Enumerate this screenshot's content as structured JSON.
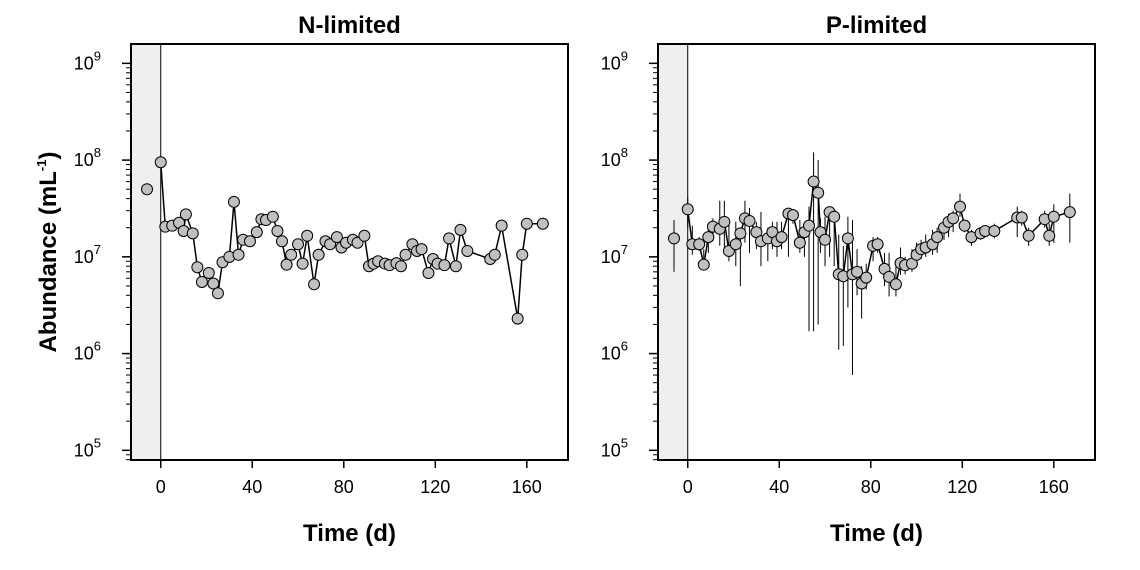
{
  "chart_data": [
    {
      "type": "scatter",
      "title": "N-limited",
      "xlabel": "Time (d)",
      "ylabel": "Abundance (mL",
      "ylabel_exponent": "-1",
      "ylabel_close": ")",
      "y_scale": "log10",
      "xlim": [
        -13,
        178
      ],
      "ylim_log10": [
        4.9,
        9.2
      ],
      "x_ticks": [
        0,
        40,
        80,
        120,
        160
      ],
      "y_tick_exponents": [
        5,
        6,
        7,
        8,
        9
      ],
      "y_tick_base": "10",
      "shaded_region": [
        -13,
        0
      ],
      "marker_fill": "#c0c0c0",
      "series": [
        {
          "x": [
            -6,
            0,
            2,
            5,
            8,
            10,
            11,
            14,
            16,
            18,
            21,
            23,
            25,
            27,
            30,
            32,
            34,
            36,
            39,
            42,
            44,
            46,
            49,
            51,
            53,
            55,
            57,
            60,
            62,
            64,
            67,
            69,
            72,
            74,
            77,
            79,
            81,
            84,
            86,
            89,
            91,
            93,
            95,
            98,
            100,
            103,
            105,
            107,
            110,
            112,
            114,
            117,
            119,
            121,
            124,
            126,
            129,
            131,
            134,
            144,
            146,
            149,
            156,
            158,
            160,
            167
          ],
          "y": [
            50000000.0,
            95000000.0,
            20500000.0,
            21000000.0,
            22500000.0,
            18500000.0,
            27500000.0,
            17500000.0,
            7800000.0,
            5500000.0,
            6800000.0,
            5300000.0,
            4200000.0,
            8800000.0,
            10000000.0,
            37000000.0,
            10500000.0,
            15000000.0,
            14500000.0,
            18000000.0,
            24500000.0,
            24000000.0,
            26000000.0,
            18500000.0,
            14500000.0,
            8300000.0,
            10500000.0,
            13500000.0,
            8500000.0,
            16500000.0,
            5200000.0,
            10500000.0,
            14500000.0,
            13500000.0,
            16000000.0,
            12500000.0,
            14000000.0,
            15000000.0,
            14000000.0,
            16500000.0,
            8000000.0,
            8500000.0,
            9000000.0,
            8500000.0,
            8200000.0,
            8600000.0,
            8000000.0,
            10500000.0,
            13500000.0,
            11500000.0,
            12000000.0,
            6800000.0,
            9500000.0,
            8500000.0,
            8200000.0,
            15500000.0,
            8000000.0,
            19000000.0,
            11500000.0,
            9500000.0,
            10500000.0,
            21000000.0,
            2300000.0,
            10500000.0,
            22000000.0,
            22000000.0
          ]
        }
      ]
    },
    {
      "type": "scatter",
      "title": "P-limited",
      "xlabel": "Time (d)",
      "y_scale": "log10",
      "xlim": [
        -13,
        178
      ],
      "ylim_log10": [
        4.9,
        9.2
      ],
      "x_ticks": [
        0,
        40,
        80,
        120,
        160
      ],
      "y_tick_exponents": [
        5,
        6,
        7,
        8,
        9
      ],
      "y_tick_base": "10",
      "shaded_region": [
        -13,
        0
      ],
      "marker_fill": "#c0c0c0",
      "series": [
        {
          "x": [
            -6,
            0,
            2,
            5,
            7,
            9,
            11,
            14,
            16,
            18,
            21,
            23,
            25,
            27,
            30,
            32,
            35,
            37,
            39,
            41,
            44,
            46,
            49,
            51,
            53,
            55,
            57,
            58,
            60,
            62,
            64,
            66,
            68,
            70,
            72,
            74,
            76,
            78,
            81,
            83,
            86,
            88,
            91,
            93,
            95,
            98,
            100,
            102,
            104,
            107,
            109,
            112,
            114,
            116,
            119,
            121,
            124,
            128,
            130,
            134,
            144,
            146,
            149,
            156,
            158,
            160,
            167
          ],
          "y": [
            15500000.0,
            31000000.0,
            13500000.0,
            13500000.0,
            8300000.0,
            16000000.0,
            20500000.0,
            19500000.0,
            23000000.0,
            11500000.0,
            13500000.0,
            17500000.0,
            25000000.0,
            23500000.0,
            18000000.0,
            14500000.0,
            15500000.0,
            18000000.0,
            14500000.0,
            16000000.0,
            28000000.0,
            27000000.0,
            14000000.0,
            18000000.0,
            21000000.0,
            60000000.0,
            46000000.0,
            18000000.0,
            15000000.0,
            29000000.0,
            26000000.0,
            6600000.0,
            6300000.0,
            15500000.0,
            6600000.0,
            7000000.0,
            5300000.0,
            6100000.0,
            13000000.0,
            13500000.0,
            7500000.0,
            6200000.0,
            5200000.0,
            8600000.0,
            8200000.0,
            8500000.0,
            10500000.0,
            12000000.0,
            12500000.0,
            13500000.0,
            16000000.0,
            20000000.0,
            23000000.0,
            25000000.0,
            33000000.0,
            21000000.0,
            16000000.0,
            17500000.0,
            18500000.0,
            18500000.0,
            25500000.0,
            25500000.0,
            16500000.0,
            24500000.0,
            16500000.0,
            26000000.0,
            29000000.0
          ],
          "err_low": [
            7000000.0,
            20000000.0,
            10500000.0,
            11500000.0,
            7500000.0,
            11000000.0,
            14500000.0,
            13000000.0,
            11000000.0,
            9000000.0,
            8000000.0,
            5000000.0,
            14000000.0,
            11000000.0,
            12000000.0,
            8000000.0,
            9000000.0,
            12000000.0,
            10000000.0,
            12000000.0,
            10000000.0,
            22000000.0,
            11000000.0,
            10000000.0,
            1700000.0,
            1700000.0,
            2000000.0,
            11000000.0,
            8000000.0,
            10000000.0,
            8000000.0,
            1100000.0,
            1200000.0,
            3000000.0,
            600000.0,
            4000000.0,
            2300000.0,
            4600000.0,
            9000000.0,
            11000000.0,
            5000000.0,
            3900000.0,
            3900000.0,
            6500000.0,
            6600000.0,
            7000000.0,
            8500000.0,
            9500000.0,
            10000000.0,
            10500000.0,
            11000000.0,
            15000000.0,
            16000000.0,
            18000000.0,
            26000000.0,
            18000000.0,
            13000000.0,
            15000000.0,
            16000000.0,
            15500000.0,
            16000000.0,
            21000000.0,
            13000000.0,
            20000000.0,
            13000000.0,
            14000000.0,
            14000000.0
          ],
          "err_high": [
            24000000.0,
            41000000.0,
            21000000.0,
            16000000.0,
            12000000.0,
            20000000.0,
            25000000.0,
            38000000.0,
            38000000.0,
            24000000.0,
            23000000.0,
            20000000.0,
            38000000.0,
            32000000.0,
            23000000.0,
            29000000.0,
            20000000.0,
            23000000.0,
            23000000.0,
            23000000.0,
            29000000.0,
            28000000.0,
            24000000.0,
            22000000.0,
            33000000.0,
            120000000.0,
            100000000.0,
            25000000.0,
            26000000.0,
            30000000.0,
            27000000.0,
            17000000.0,
            13000000.0,
            26000000.0,
            24000000.0,
            12000000.0,
            8000000.0,
            8500000.0,
            16000000.0,
            16000000.0,
            11000000.0,
            11000000.0,
            8000000.0,
            12500000.0,
            10000000.0,
            12000000.0,
            14000000.0,
            15000000.0,
            17000000.0,
            19000000.0,
            20000000.0,
            24000000.0,
            28000000.0,
            30000000.0,
            45000000.0,
            24000000.0,
            19000000.0,
            20000000.0,
            21000000.0,
            22000000.0,
            33000000.0,
            30000000.0,
            20000000.0,
            30000000.0,
            22000000.0,
            35000000.0,
            45000000.0
          ]
        }
      ]
    }
  ]
}
